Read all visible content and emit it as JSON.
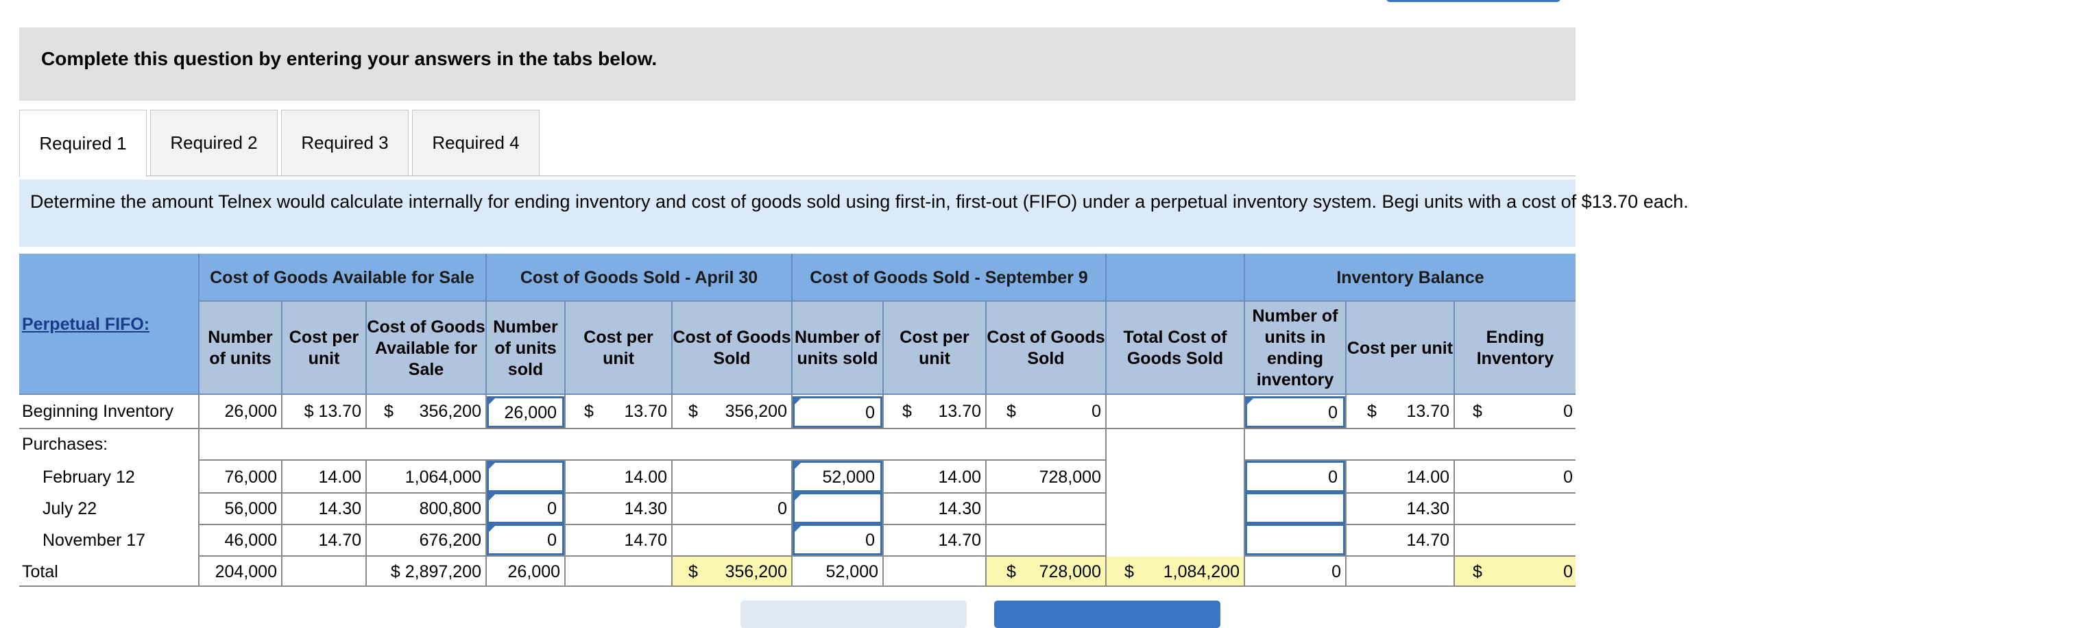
{
  "header": {
    "prompt": "Complete this question by entering your answers in the tabs below."
  },
  "tabs": [
    {
      "label": "Required 1",
      "active": true
    },
    {
      "label": "Required 2",
      "active": false
    },
    {
      "label": "Required 3",
      "active": false
    },
    {
      "label": "Required 4",
      "active": false
    }
  ],
  "instructions": "Determine the amount Telnex would calculate internally for ending inventory and cost of goods sold using first-in, first-out (FIFO) under a perpetual inventory system. Begi units with a cost of $13.70 each.",
  "table": {
    "corner_label": "Perpetual FIFO:",
    "groups": {
      "available": "Cost of Goods Available for Sale",
      "april": "Cost of Goods Sold - April 30",
      "september": "Cost of Goods Sold - September 9",
      "balance": "Inventory Balance"
    },
    "cols": {
      "avail_units": "Number of units",
      "avail_cpu": "Cost per unit",
      "avail_cost": "Cost of Goods Available for Sale",
      "apr_units": "Number of units sold",
      "apr_cpu": "Cost per unit",
      "apr_cogs": "Cost of Goods Sold",
      "sep_units": "Number of units sold",
      "sep_cpu": "Cost per unit",
      "sep_cogs": "Cost of Goods Sold",
      "total_cogs": "Total Cost of Goods Sold",
      "bal_units": "Number of units in ending inventory",
      "bal_cpu": "Cost per unit",
      "bal_end": "Ending Inventory"
    },
    "rows": {
      "beginning": {
        "label": "Beginning Inventory",
        "avail_units": "26,000",
        "avail_cpu": "$ 13.70",
        "avail_cost_sym": "$",
        "avail_cost": "356,200",
        "apr_units": "26,000",
        "apr_cpu_sym": "$",
        "apr_cpu": "13.70",
        "apr_cogs_sym": "$",
        "apr_cogs": "356,200",
        "sep_units": "0",
        "sep_cpu_sym": "$",
        "sep_cpu": "13.70",
        "sep_cogs_sym": "$",
        "sep_cogs": "0",
        "bal_units": "0",
        "bal_cpu_sym": "$",
        "bal_cpu": "13.70",
        "bal_end_sym": "$",
        "bal_end": "0"
      },
      "purchases": {
        "label": "Purchases:"
      },
      "feb": {
        "label": "February 12",
        "avail_units": "76,000",
        "avail_cpu": "14.00",
        "avail_cost": "1,064,000",
        "apr_units": "",
        "apr_cpu": "14.00",
        "apr_cogs": "",
        "sep_units": "52,000",
        "sep_cpu": "14.00",
        "sep_cogs": "728,000",
        "bal_units": "0",
        "bal_cpu": "14.00",
        "bal_end": "0"
      },
      "jul": {
        "label": "July 22",
        "avail_units": "56,000",
        "avail_cpu": "14.30",
        "avail_cost": "800,800",
        "apr_units": "0",
        "apr_cpu": "14.30",
        "apr_cogs": "0",
        "sep_units": "",
        "sep_cpu": "14.30",
        "sep_cogs": "",
        "bal_units": "",
        "bal_cpu": "14.30",
        "bal_end": ""
      },
      "nov": {
        "label": "November 17",
        "avail_units": "46,000",
        "avail_cpu": "14.70",
        "avail_cost": "676,200",
        "apr_units": "0",
        "apr_cpu": "14.70",
        "apr_cogs": "",
        "sep_units": "0",
        "sep_cpu": "14.70",
        "sep_cogs": "",
        "bal_units": "",
        "bal_cpu": "14.70",
        "bal_end": ""
      },
      "total": {
        "label": "Total",
        "avail_units": "204,000",
        "avail_cost": "$ 2,897,200",
        "apr_units": "26,000",
        "apr_cogs_sym": "$",
        "apr_cogs": "356,200",
        "sep_units": "52,000",
        "sep_cogs_sym": "$",
        "sep_cogs": "728,000",
        "total_cogs_sym": "$",
        "total_cogs": "1,084,200",
        "bal_units": "0",
        "bal_end_sym": "$",
        "bal_end": "0"
      }
    }
  },
  "colors": {
    "header_blue": "#7eaee3",
    "subheader_blue": "#b0c4de",
    "input_border": "#3a6fb0",
    "highlight": "#fbf7b0"
  }
}
